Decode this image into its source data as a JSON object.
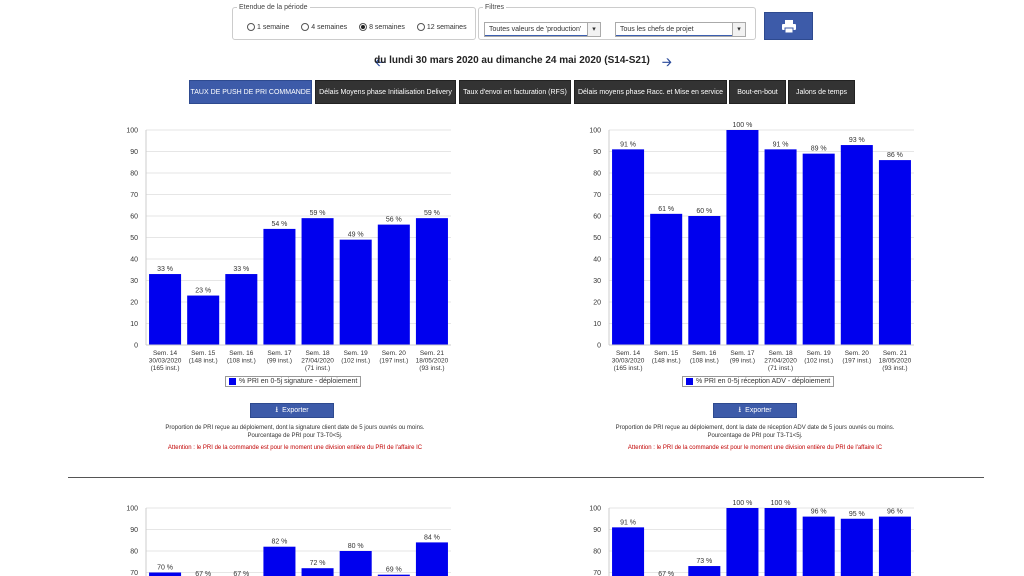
{
  "periode": {
    "legend": "Etendue de la période",
    "options": [
      {
        "label": "1 semaine",
        "checked": false
      },
      {
        "label": "4 semaines",
        "checked": false
      },
      {
        "label": "8 semaines",
        "checked": true
      },
      {
        "label": "12 semaines",
        "checked": false
      }
    ]
  },
  "filtres": {
    "legend": "Filtres",
    "valeurs_select": "Toutes valeurs de 'production'",
    "chefs_select": "Tous les chefs de projet"
  },
  "print_icon": "printer-icon",
  "period_title": "du lundi 30 mars 2020 au dimanche 24 mai 2020 (S14-S21)",
  "tabs": [
    "TAUX DE PUSH DE PRI COMMANDE",
    "Délais Moyens phase Initialisation Delivery",
    "Taux d'envoi en facturation (RFS)",
    "Délais moyens phase Racc. et Mise en service",
    "Bout-en-bout",
    "Jalons de temps"
  ],
  "colors": {
    "bar": "#0000ee",
    "accent": "#3d5ba9",
    "warn": "#c00000"
  },
  "export_label": "Exporter",
  "panels": [
    {
      "legend": "% PRI en 0-5j signature - déploiement",
      "note1": "Proportion de PRI reçue au déploiement, dont la signature client date de 5 jours ouvrés ou moins.",
      "note2": "Pourcentage de PRI pour T3-T0<5j.",
      "warning": "Attention : le PRI de la commande est pour le moment une division entière du PRI de l'affaire IC"
    },
    {
      "legend": "% PRI en 0-5j réception ADV - déploiement",
      "note1": "Proportion de PRI reçue au déploiement, dont la date de réception ADV date de 5 jours ouvrés ou moins.",
      "note2": "Pourcentage de PRI pour T3-T1<5j.",
      "warning": "Attention : le PRI de la commande est pour le moment une division entière du PRI de l'affaire IC"
    }
  ],
  "chart_data": [
    {
      "type": "bar",
      "ylim": [
        0,
        100
      ],
      "yticks": [
        0,
        10,
        20,
        30,
        40,
        50,
        60,
        70,
        80,
        90,
        100
      ],
      "categories": [
        [
          "Sem. 14",
          "30/03/2020",
          "(165 inst.)"
        ],
        [
          "Sem. 15",
          "(148 inst.)"
        ],
        [
          "Sem. 16",
          "(108 inst.)"
        ],
        [
          "Sem. 17",
          "(99 inst.)"
        ],
        [
          "Sem. 18",
          "27/04/2020",
          "(71 inst.)"
        ],
        [
          "Sem. 19",
          "(102 inst.)"
        ],
        [
          "Sem. 20",
          "(197 inst.)"
        ],
        [
          "Sem. 21",
          "18/05/2020",
          "(93 inst.)"
        ]
      ],
      "values": [
        33,
        23,
        33,
        54,
        59,
        49,
        56,
        59
      ],
      "series": [
        {
          "name": "% PRI en 0-5j signature - déploiement",
          "values": [
            33,
            23,
            33,
            54,
            59,
            49,
            56,
            59
          ]
        }
      ],
      "grid": true,
      "legend_position": "bottom"
    },
    {
      "type": "bar",
      "ylim": [
        0,
        100
      ],
      "yticks": [
        0,
        10,
        20,
        30,
        40,
        50,
        60,
        70,
        80,
        90,
        100
      ],
      "categories": [
        [
          "Sem. 14",
          "30/03/2020",
          "(165 inst.)"
        ],
        [
          "Sem. 15",
          "(148 inst.)"
        ],
        [
          "Sem. 16",
          "(108 inst.)"
        ],
        [
          "Sem. 17",
          "(99 inst.)"
        ],
        [
          "Sem. 18",
          "27/04/2020",
          "(71 inst.)"
        ],
        [
          "Sem. 19",
          "(102 inst.)"
        ],
        [
          "Sem. 20",
          "(197 inst.)"
        ],
        [
          "Sem. 21",
          "18/05/2020",
          "(93 inst.)"
        ]
      ],
      "values": [
        91,
        61,
        60,
        100,
        91,
        89,
        93,
        86
      ],
      "series": [
        {
          "name": "% PRI en 0-5j réception ADV - déploiement",
          "values": [
            91,
            61,
            60,
            100,
            91,
            89,
            93,
            86
          ]
        }
      ],
      "grid": true,
      "legend_position": "bottom"
    },
    {
      "type": "bar",
      "ylim": [
        0,
        100
      ],
      "yticks": [
        70,
        80,
        90,
        100
      ],
      "values": [
        70,
        67,
        67,
        82,
        72,
        80,
        69,
        84
      ],
      "grid": true
    },
    {
      "type": "bar",
      "ylim": [
        0,
        100
      ],
      "yticks": [
        70,
        80,
        90,
        100
      ],
      "values": [
        91,
        67,
        73,
        100,
        100,
        96,
        95,
        96
      ],
      "grid": true
    }
  ]
}
